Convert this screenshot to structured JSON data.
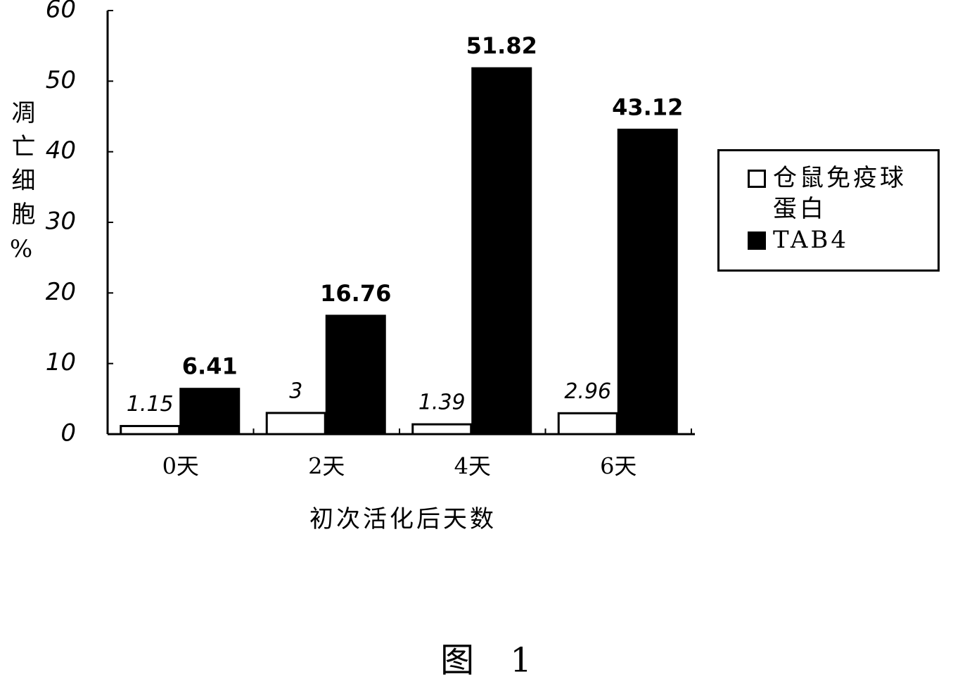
{
  "chart_data": {
    "type": "bar",
    "y_label": "凋亡细胞%",
    "x_label": "初次活化后天数",
    "figure_caption": "图 1",
    "categories": [
      "0天",
      "2天",
      "4天",
      "6天"
    ],
    "series": [
      {
        "name": "仓鼠免疫球蛋白",
        "color": "#ffffff",
        "values": [
          1.15,
          3,
          1.39,
          2.96
        ]
      },
      {
        "name": "TAB4",
        "color": "#000000",
        "values": [
          6.41,
          16.76,
          51.82,
          43.12
        ]
      }
    ],
    "ylim": [
      0,
      60
    ],
    "yticks": [
      0,
      10,
      20,
      30,
      40,
      50,
      60
    ]
  }
}
